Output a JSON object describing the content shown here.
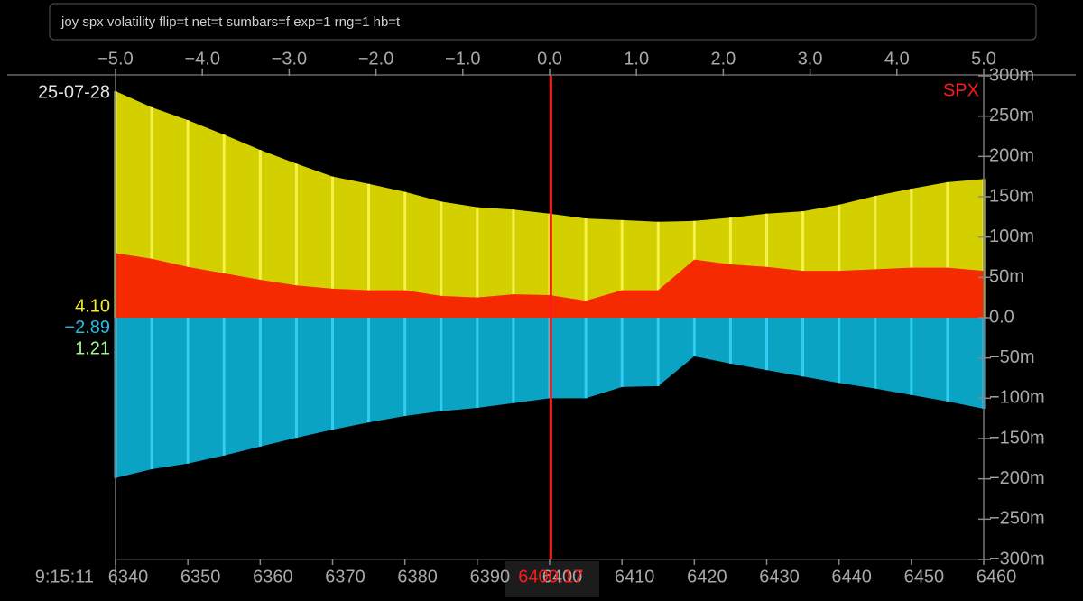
{
  "chart_data": {
    "type": "area",
    "command": "joy spx volatility flip=t net=t sumbars=f exp=1 rng=1 hb=t",
    "date": "25-07-28",
    "time": "9:15:11",
    "symbol": "SPX",
    "symbol_color": "#ff1a1a",
    "stats": [
      {
        "text": "4.10",
        "color": "#f2ee2a"
      },
      {
        "text": "−2.89",
        "color": "#23bde0"
      },
      {
        "text": "1.21",
        "color": "#a6f58c"
      }
    ],
    "spot": 6400.17,
    "spot_color": "#ff1a1a",
    "x": [
      6340,
      6345,
      6350,
      6355,
      6360,
      6365,
      6370,
      6375,
      6380,
      6385,
      6390,
      6395,
      6400,
      6405,
      6410,
      6415,
      6420,
      6425,
      6430,
      6435,
      6440,
      6445,
      6450,
      6455,
      6460
    ],
    "series": [
      {
        "color": "#d4d000",
        "stripe_color": "#f4f24a",
        "values": [
          281,
          261,
          245,
          227,
          208,
          191,
          175,
          166,
          156,
          144,
          137,
          134,
          129,
          123,
          121,
          119,
          120,
          124,
          129,
          132,
          140,
          151,
          160,
          168,
          172
        ]
      },
      {
        "color": "#f52a00",
        "values": [
          80,
          73,
          63,
          55,
          47,
          40,
          36,
          34,
          34,
          27,
          25,
          29,
          28,
          21,
          34,
          34,
          72,
          66,
          63,
          58,
          58,
          60,
          62,
          62,
          58
        ]
      },
      {
        "color": "#0aa3c4",
        "stripe_color": "#30cdf2",
        "values": [
          -199,
          -188,
          -181,
          -171,
          -160,
          -149,
          -139,
          -130,
          -122,
          -116,
          -112,
          -106,
          -100,
          -100,
          -86,
          -85,
          -48,
          -57,
          -65,
          -73,
          -81,
          -88,
          -96,
          -104,
          -113
        ]
      }
    ],
    "xlim": [
      6340,
      6460
    ],
    "xticks": [
      6340,
      6350,
      6360,
      6370,
      6380,
      6390,
      6400,
      6410,
      6420,
      6430,
      6440,
      6450,
      6460
    ],
    "x2lim": [
      -5,
      5
    ],
    "x2ticks": [
      {
        "value": -5,
        "label": "−5.0"
      },
      {
        "value": -4,
        "label": "−4.0"
      },
      {
        "value": -3,
        "label": "−3.0"
      },
      {
        "value": -2,
        "label": "−2.0"
      },
      {
        "value": -1,
        "label": "−1.0"
      },
      {
        "value": 0,
        "label": "0.0"
      },
      {
        "value": 1,
        "label": "1.0"
      },
      {
        "value": 2,
        "label": "2.0"
      },
      {
        "value": 3,
        "label": "3.0"
      },
      {
        "value": 4,
        "label": "4.0"
      },
      {
        "value": 5,
        "label": "5.0"
      }
    ],
    "ylim": [
      -300,
      300
    ],
    "yticks": [
      {
        "value": 300,
        "label": "300m"
      },
      {
        "value": 250,
        "label": "250m"
      },
      {
        "value": 200,
        "label": "200m"
      },
      {
        "value": 150,
        "label": "150m"
      },
      {
        "value": 100,
        "label": "100m"
      },
      {
        "value": 50,
        "label": "50m"
      },
      {
        "value": 0,
        "label": "0.0"
      },
      {
        "value": -50,
        "label": "−50m"
      },
      {
        "value": -100,
        "label": "−100m"
      },
      {
        "value": -150,
        "label": "−150m"
      },
      {
        "value": -200,
        "label": "−200m"
      },
      {
        "value": -250,
        "label": "−250m"
      },
      {
        "value": -300,
        "label": "−300m"
      }
    ]
  }
}
